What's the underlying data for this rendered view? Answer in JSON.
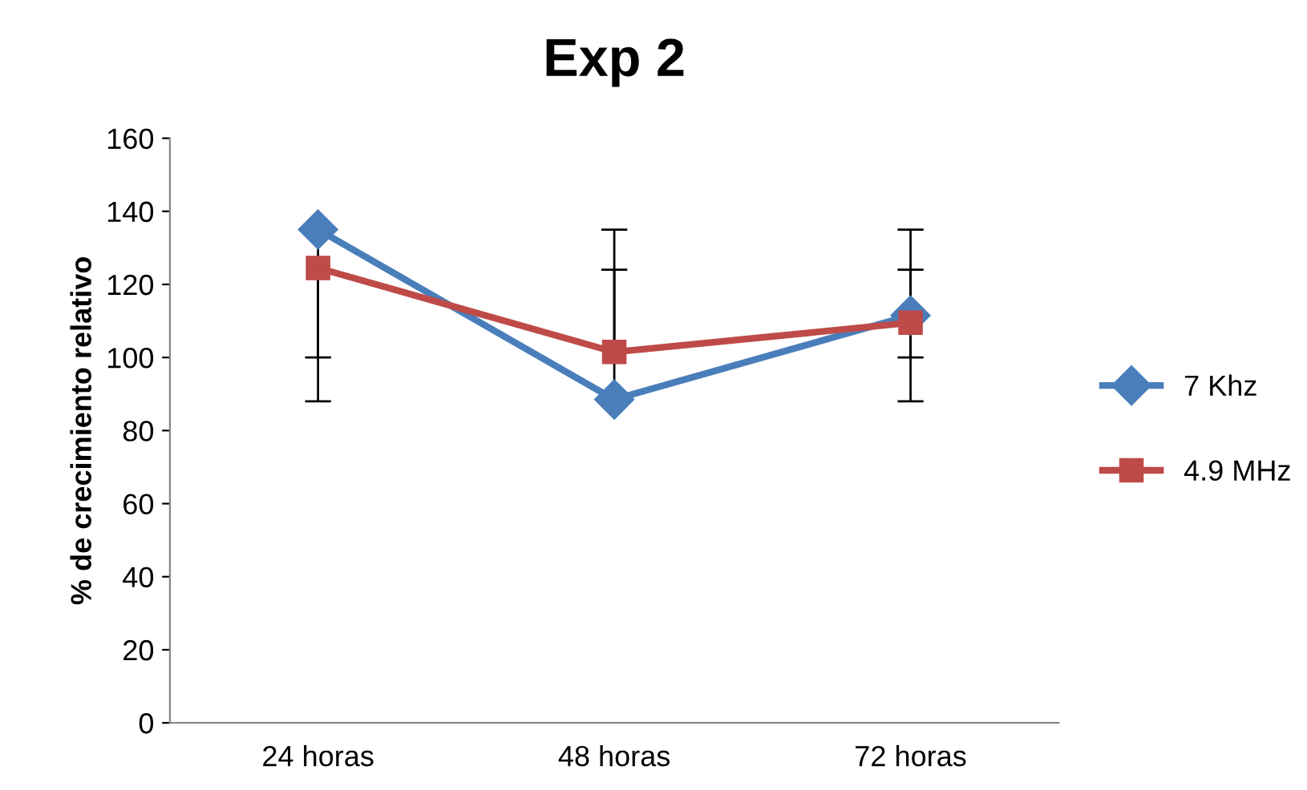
{
  "chart_data": {
    "type": "line",
    "title": "Exp 2",
    "ylabel": "% de crecimiento relativo",
    "categories": [
      "24 horas",
      "48 horas",
      "72 horas"
    ],
    "series": [
      {
        "name": "7 Khz",
        "color": "#4a7ebb",
        "marker": "diamond",
        "values": [
          135,
          88.5,
          111.5
        ],
        "errors": [
          [
            88,
            135
          ],
          [
            88.5,
            135
          ],
          [
            88,
            135
          ]
        ]
      },
      {
        "name": "4.9 MHz",
        "color": "#be4b48",
        "marker": "square",
        "values": [
          124.5,
          101.5,
          109.5
        ],
        "errors": [
          [
            100,
            124.5
          ],
          [
            101.5,
            124
          ],
          [
            100,
            124
          ]
        ]
      }
    ],
    "ylim": [
      0,
      160
    ],
    "yticks": [
      0,
      20,
      40,
      60,
      80,
      100,
      120,
      140,
      160
    ],
    "grid": false,
    "legend": "right",
    "line_style": "solid"
  }
}
